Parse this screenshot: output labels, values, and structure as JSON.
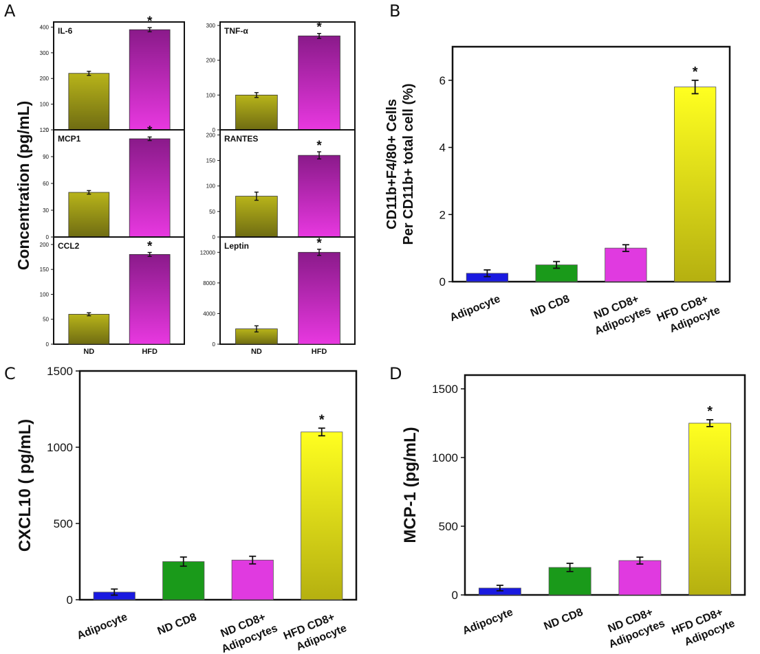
{
  "panels": {
    "A": "A",
    "B": "B",
    "C": "C",
    "D": "D"
  },
  "panel_a_ylabel": "Concentration (pg/mL)",
  "colors": {
    "nd_top": "#b8b41a",
    "nd_bottom": "#6f6c12",
    "hfd_top": "#8a1a8a",
    "hfd_bottom": "#e838e0",
    "blue": "#1a1ae0",
    "green": "#1a9a1a",
    "magenta": "#e03ae0",
    "yellow_top": "#ffff20",
    "yellow_bottom": "#b5b010"
  },
  "chart_data": [
    {
      "id": "A-IL-6",
      "type": "bar",
      "title": "IL-6",
      "categories": [
        "ND",
        "HFD"
      ],
      "values": [
        220,
        390
      ],
      "errors": [
        8,
        8
      ],
      "ylim": [
        0,
        420
      ],
      "yticks": [
        0,
        100,
        200,
        300,
        400
      ],
      "significance": [
        "",
        "*"
      ],
      "show_xlabels": false
    },
    {
      "id": "A-TNF-a",
      "type": "bar",
      "title": "TNF-α",
      "categories": [
        "ND",
        "HFD"
      ],
      "values": [
        100,
        270
      ],
      "errors": [
        7,
        7
      ],
      "ylim": [
        0,
        310
      ],
      "yticks": [
        0,
        100,
        200,
        300
      ],
      "significance": [
        "",
        "*"
      ],
      "show_xlabels": false
    },
    {
      "id": "A-MCP1",
      "type": "bar",
      "title": "MCP1",
      "categories": [
        "ND",
        "HFD"
      ],
      "values": [
        50,
        110
      ],
      "errors": [
        2,
        2
      ],
      "ylim": [
        0,
        120
      ],
      "yticks": [
        0,
        30,
        60,
        90,
        120
      ],
      "significance": [
        "",
        "*"
      ],
      "show_xlabels": false
    },
    {
      "id": "A-RANTES",
      "type": "bar",
      "title": "RANTES",
      "categories": [
        "ND",
        "HFD"
      ],
      "values": [
        80,
        160
      ],
      "errors": [
        8,
        7
      ],
      "ylim": [
        0,
        210
      ],
      "yticks": [
        0,
        50,
        100,
        150,
        200
      ],
      "significance": [
        "",
        "*"
      ],
      "show_xlabels": false
    },
    {
      "id": "A-CCL2",
      "type": "bar",
      "title": "CCL2",
      "categories": [
        "ND",
        "HFD"
      ],
      "values": [
        60,
        180
      ],
      "errors": [
        3,
        4
      ],
      "ylim": [
        0,
        215
      ],
      "yticks": [
        0,
        50,
        100,
        150,
        200
      ],
      "significance": [
        "",
        "*"
      ],
      "show_xlabels": true
    },
    {
      "id": "A-Leptin",
      "type": "bar",
      "title": "Leptin",
      "categories": [
        "ND",
        "HFD"
      ],
      "values": [
        2000,
        12000
      ],
      "errors": [
        400,
        400
      ],
      "ylim": [
        0,
        14000
      ],
      "yticks": [
        0,
        4000,
        8000,
        12000
      ],
      "significance": [
        "",
        "*"
      ],
      "show_xlabels": true
    },
    {
      "id": "B",
      "type": "bar",
      "title": "",
      "ylabel_lines": [
        "CD11b+F4/80+ Cells",
        "Per CD11b+ total cell (%)"
      ],
      "categories": [
        [
          "Adipocyte"
        ],
        [
          "ND CD8"
        ],
        [
          "ND CD8+",
          "Adipocytes"
        ],
        [
          "HFD CD8+",
          "Adipocyte"
        ]
      ],
      "values": [
        0.25,
        0.5,
        1.0,
        5.8
      ],
      "errors": [
        0.1,
        0.1,
        0.1,
        0.2
      ],
      "ylim": [
        0,
        7
      ],
      "yticks": [
        0,
        2,
        4,
        6
      ],
      "significance": [
        "",
        "",
        "",
        "*"
      ]
    },
    {
      "id": "C",
      "type": "bar",
      "title": "",
      "ylabel_lines": [
        "CXCL10 ( pg/mL)"
      ],
      "categories": [
        [
          "Adipocyte"
        ],
        [
          "ND CD8"
        ],
        [
          "ND CD8+",
          "Adipocytes"
        ],
        [
          "HFD CD8+",
          "Adipocyte"
        ]
      ],
      "values": [
        50,
        250,
        260,
        1100
      ],
      "errors": [
        20,
        30,
        25,
        25
      ],
      "ylim": [
        0,
        1500
      ],
      "yticks": [
        0,
        500,
        1000,
        1500
      ],
      "significance": [
        "",
        "",
        "",
        "*"
      ]
    },
    {
      "id": "D",
      "type": "bar",
      "title": "",
      "ylabel_lines": [
        "MCP-1 (pg/mL)"
      ],
      "categories": [
        [
          "Adipocyte"
        ],
        [
          "ND CD8"
        ],
        [
          "ND CD8+",
          "Adipocytes"
        ],
        [
          "HFD CD8+",
          "Adipocyte"
        ]
      ],
      "values": [
        50,
        200,
        250,
        1250
      ],
      "errors": [
        20,
        30,
        25,
        25
      ],
      "ylim": [
        0,
        1600
      ],
      "yticks": [
        0,
        500,
        1000,
        1500
      ],
      "significance": [
        "",
        "",
        "",
        "*"
      ]
    }
  ]
}
